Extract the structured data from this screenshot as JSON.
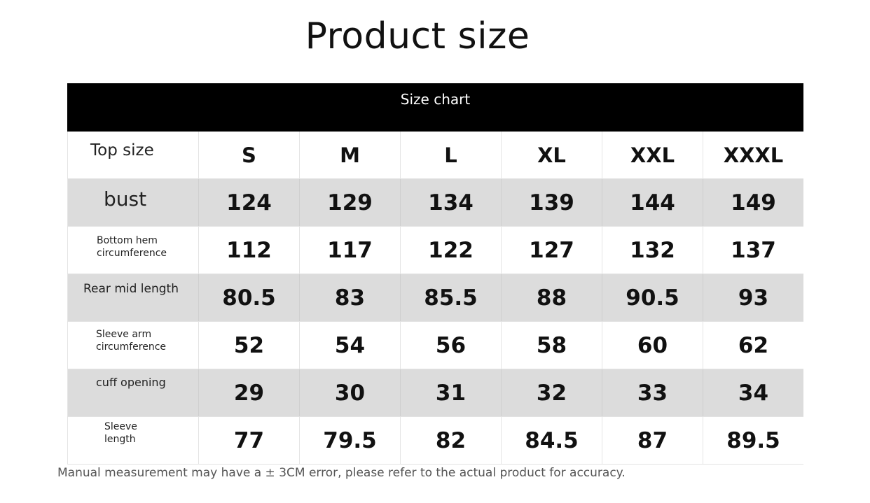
{
  "title": "Product size",
  "table": {
    "caption": "Size chart",
    "header": {
      "label": "Top size",
      "sizes": [
        "S",
        "M",
        "L",
        "XL",
        "XXL",
        "XXXL"
      ]
    },
    "rows": [
      {
        "label": "bust",
        "values": [
          "124",
          "129",
          "134",
          "139",
          "144",
          "149"
        ]
      },
      {
        "label": "Bottom hem\ncircumference",
        "values": [
          "112",
          "117",
          "122",
          "127",
          "132",
          "137"
        ]
      },
      {
        "label": "Rear mid length",
        "values": [
          "80.5",
          "83",
          "85.5",
          "88",
          "90.5",
          "93"
        ]
      },
      {
        "label": "Sleeve arm\ncircumference",
        "values": [
          "52",
          "54",
          "56",
          "58",
          "60",
          "62"
        ]
      },
      {
        "label": "cuff opening",
        "values": [
          "29",
          "30",
          "31",
          "32",
          "33",
          "34"
        ]
      },
      {
        "label": "Sleeve\nlength",
        "values": [
          "77",
          "79.5",
          "82",
          "84.5",
          "87",
          "89.5"
        ]
      }
    ]
  },
  "note": "Manual measurement may have a ± 3CM error, please refer to the actual product for accuracy.",
  "colors": {
    "header_bg": "#000000",
    "stripe": "#dcdcdc"
  }
}
